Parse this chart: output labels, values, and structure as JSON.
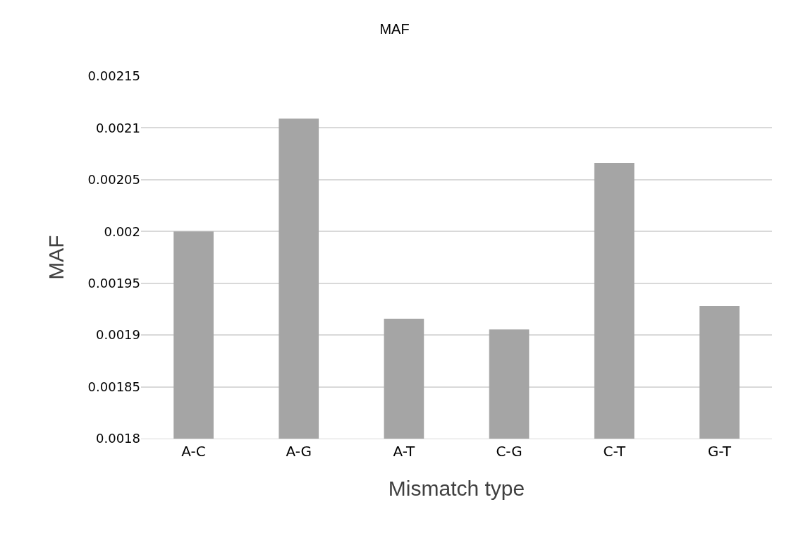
{
  "chart_data": {
    "type": "bar",
    "title": "MAF",
    "xlabel": "Mismatch type",
    "ylabel": "MAF",
    "categories": [
      "A-C",
      "A-G",
      "A-T",
      "C-G",
      "C-T",
      "G-T"
    ],
    "values": [
      0.002,
      0.002109,
      0.0019157,
      0.0019054,
      0.0020663,
      0.001928
    ],
    "color": "#a5a5a5",
    "ylim": [
      0.0018,
      0.00215
    ],
    "yticks": [
      0.0018,
      0.00185,
      0.0019,
      0.00195,
      0.002,
      0.00205,
      0.0021,
      0.00215
    ],
    "grid": "y",
    "legend": false
  }
}
